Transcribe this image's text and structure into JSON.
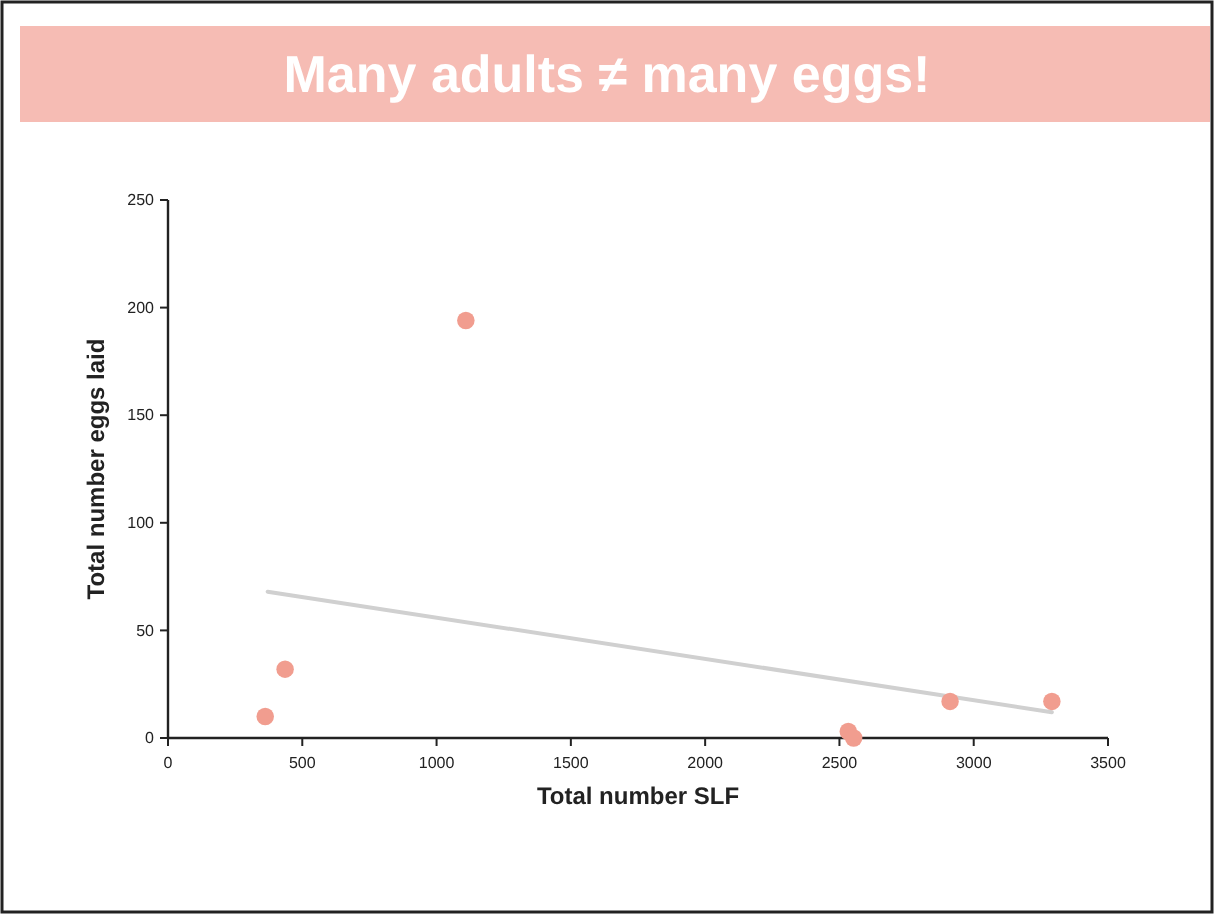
{
  "chart_data": {
    "type": "scatter",
    "title": "Many adults ≠ many eggs!",
    "xlabel": "Total number SLF",
    "ylabel": "Total number eggs laid",
    "xlim": [
      0,
      3500
    ],
    "xticks": [
      0,
      500,
      1000,
      1500,
      2000,
      2500,
      3000,
      3500
    ],
    "ylim": [
      0,
      250
    ],
    "yticks": [
      0,
      50,
      100,
      150,
      200,
      250
    ],
    "grid": false,
    "series": [
      {
        "marker": "circle",
        "color": "#f19d8f",
        "x": [
          362,
          436,
          1109,
          2533,
          2553,
          2912,
          3291
        ],
        "values": [
          10,
          32,
          194,
          3,
          0,
          17,
          17
        ]
      },
      {
        "type": "line",
        "color": "#d0d0d0",
        "x": [
          371,
          3291
        ],
        "values": [
          68,
          12
        ]
      }
    ]
  }
}
